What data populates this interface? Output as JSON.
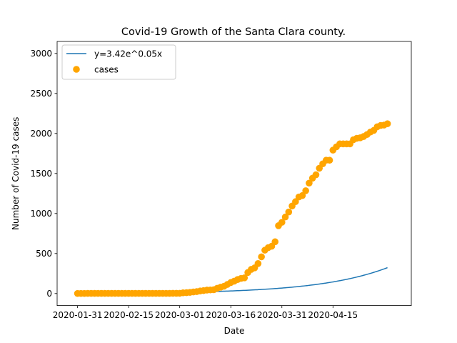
{
  "chart_data": {
    "type": "scatter",
    "title": "Covid-19 Growth of the Santa Clara county.",
    "xlabel": "Date",
    "ylabel": "Number of Covid-19 cases",
    "x_ticks": [
      "2020-01-31",
      "2020-02-15",
      "2020-03-01",
      "2020-03-16",
      "2020-03-31",
      "2020-04-15"
    ],
    "xlim": [
      "2020-01-25",
      "2020-05-08"
    ],
    "y_ticks": [
      0,
      500,
      1000,
      1500,
      2000,
      2500,
      3000
    ],
    "ylim": [
      -150,
      3150
    ],
    "grid": false,
    "legend_position": "top-left",
    "series": [
      {
        "name": "y=3.42e^0.05x",
        "kind": "line",
        "color": "#1f77b4",
        "formula": {
          "a": 3.42,
          "b": 0.05,
          "start": "2020-01-31",
          "end": "2020-05-01"
        }
      },
      {
        "name": "cases",
        "kind": "scatter",
        "color": "#ffa500",
        "points": [
          [
            "2020-01-31",
            1
          ],
          [
            "2020-02-01",
            1
          ],
          [
            "2020-02-02",
            1
          ],
          [
            "2020-02-03",
            2
          ],
          [
            "2020-02-04",
            2
          ],
          [
            "2020-02-05",
            2
          ],
          [
            "2020-02-06",
            2
          ],
          [
            "2020-02-07",
            2
          ],
          [
            "2020-02-08",
            2
          ],
          [
            "2020-02-09",
            2
          ],
          [
            "2020-02-10",
            2
          ],
          [
            "2020-02-11",
            2
          ],
          [
            "2020-02-12",
            2
          ],
          [
            "2020-02-13",
            2
          ],
          [
            "2020-02-14",
            2
          ],
          [
            "2020-02-15",
            2
          ],
          [
            "2020-02-16",
            2
          ],
          [
            "2020-02-17",
            2
          ],
          [
            "2020-02-18",
            2
          ],
          [
            "2020-02-19",
            2
          ],
          [
            "2020-02-20",
            2
          ],
          [
            "2020-02-21",
            2
          ],
          [
            "2020-02-22",
            2
          ],
          [
            "2020-02-23",
            2
          ],
          [
            "2020-02-24",
            2
          ],
          [
            "2020-02-25",
            2
          ],
          [
            "2020-02-26",
            2
          ],
          [
            "2020-02-27",
            2
          ],
          [
            "2020-02-28",
            3
          ],
          [
            "2020-02-29",
            3
          ],
          [
            "2020-03-01",
            3
          ],
          [
            "2020-03-02",
            9
          ],
          [
            "2020-03-03",
            11
          ],
          [
            "2020-03-04",
            14
          ],
          [
            "2020-03-05",
            20
          ],
          [
            "2020-03-06",
            24
          ],
          [
            "2020-03-07",
            32
          ],
          [
            "2020-03-08",
            37
          ],
          [
            "2020-03-09",
            43
          ],
          [
            "2020-03-10",
            45
          ],
          [
            "2020-03-11",
            48
          ],
          [
            "2020-03-12",
            66
          ],
          [
            "2020-03-13",
            79
          ],
          [
            "2020-03-14",
            91
          ],
          [
            "2020-03-15",
            114
          ],
          [
            "2020-03-16",
            138
          ],
          [
            "2020-03-17",
            155
          ],
          [
            "2020-03-18",
            175
          ],
          [
            "2020-03-19",
            189
          ],
          [
            "2020-03-20",
            196
          ],
          [
            "2020-03-21",
            263
          ],
          [
            "2020-03-22",
            302
          ],
          [
            "2020-03-23",
            321
          ],
          [
            "2020-03-24",
            375
          ],
          [
            "2020-03-25",
            459
          ],
          [
            "2020-03-26",
            542
          ],
          [
            "2020-03-27",
            574
          ],
          [
            "2020-03-28",
            591
          ],
          [
            "2020-03-29",
            647
          ],
          [
            "2020-03-30",
            848
          ],
          [
            "2020-03-31",
            890
          ],
          [
            "2020-04-01",
            956
          ],
          [
            "2020-04-02",
            1019
          ],
          [
            "2020-04-03",
            1094
          ],
          [
            "2020-04-04",
            1148
          ],
          [
            "2020-04-05",
            1207
          ],
          [
            "2020-04-06",
            1224
          ],
          [
            "2020-04-07",
            1285
          ],
          [
            "2020-04-08",
            1380
          ],
          [
            "2020-04-09",
            1442
          ],
          [
            "2020-04-10",
            1484
          ],
          [
            "2020-04-11",
            1566
          ],
          [
            "2020-04-12",
            1621
          ],
          [
            "2020-04-13",
            1666
          ],
          [
            "2020-04-14",
            1666
          ],
          [
            "2020-04-15",
            1792
          ],
          [
            "2020-04-16",
            1833
          ],
          [
            "2020-04-17",
            1870
          ],
          [
            "2020-04-18",
            1870
          ],
          [
            "2020-04-19",
            1870
          ],
          [
            "2020-04-20",
            1870
          ],
          [
            "2020-04-21",
            1922
          ],
          [
            "2020-04-22",
            1940
          ],
          [
            "2020-04-23",
            1946
          ],
          [
            "2020-04-24",
            1962
          ],
          [
            "2020-04-25",
            1987
          ],
          [
            "2020-04-26",
            2018
          ],
          [
            "2020-04-27",
            2039
          ],
          [
            "2020-04-28",
            2084
          ],
          [
            "2020-04-29",
            2100
          ],
          [
            "2020-04-30",
            2105
          ],
          [
            "2020-05-01",
            2122
          ]
        ]
      }
    ]
  }
}
